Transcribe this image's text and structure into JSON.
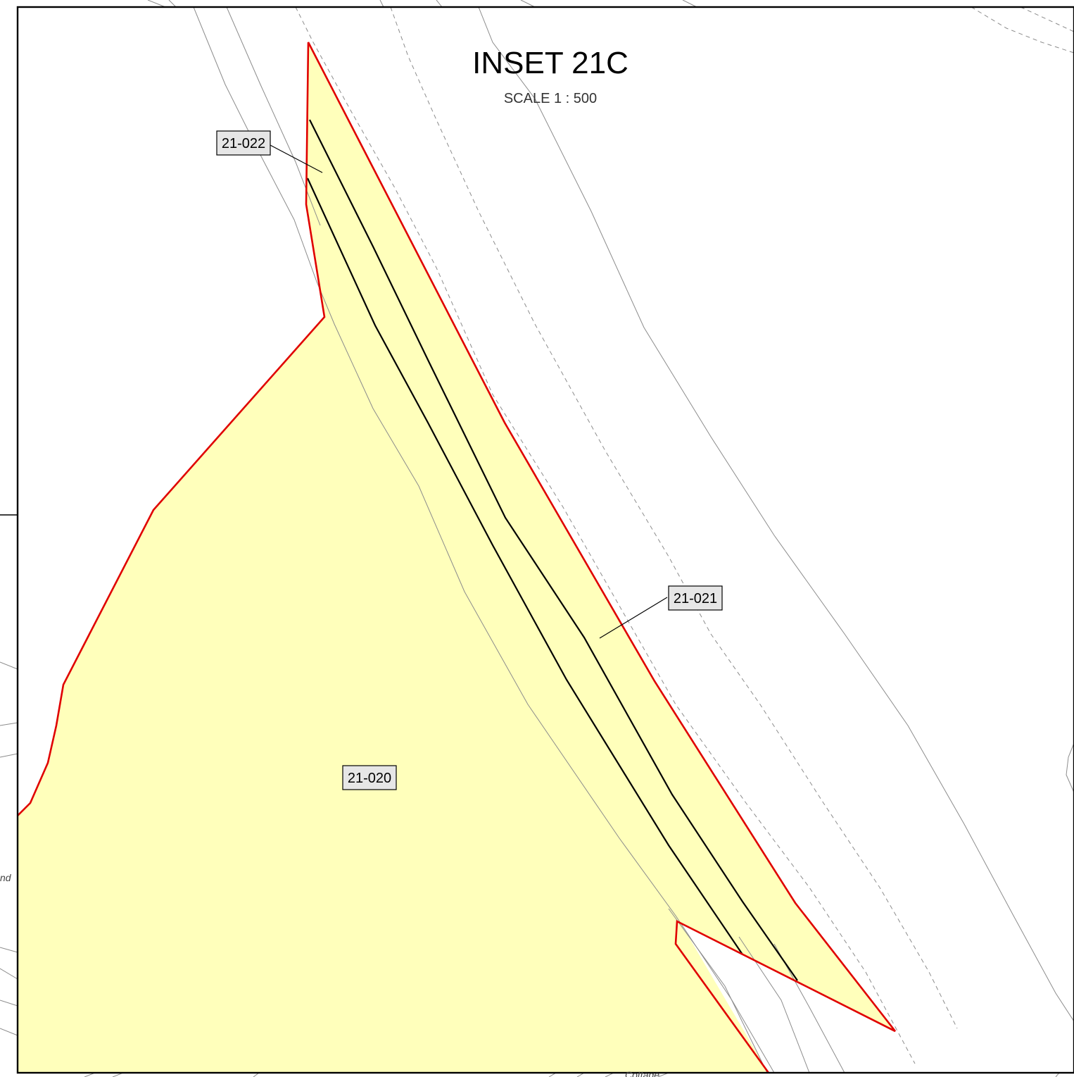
{
  "inset": {
    "title": "INSET 21C",
    "scale": "SCALE 1 : 500"
  },
  "plots": [
    {
      "id": "21-022"
    },
    {
      "id": "21-021"
    },
    {
      "id": "21-020"
    }
  ],
  "base_map_text": {
    "left_fragment": "nd",
    "bottom_fragment": "Cottage"
  },
  "colors": {
    "plot_fill": "#ffffbb",
    "boundary": "#e00000",
    "frame": "#000000",
    "base_lines": "#8c8c8c",
    "label_box": "#e6e6e6"
  }
}
